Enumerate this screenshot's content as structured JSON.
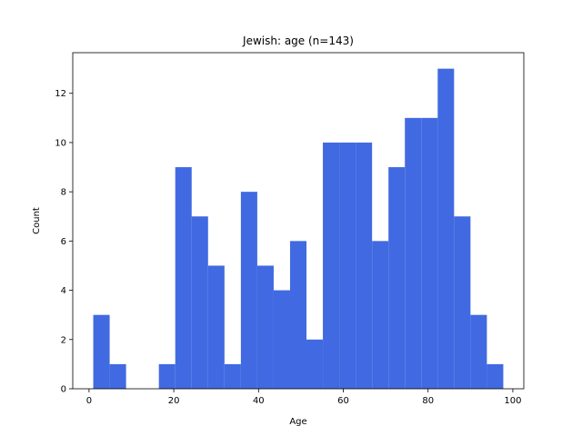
{
  "chart_data": {
    "type": "bar",
    "subtype": "histogram",
    "title": "Jewish: age (n=143)",
    "xlabel": "Age",
    "ylabel": "Count",
    "bar_color": "#4169e1",
    "bin_start": 1,
    "bin_width": 3.87,
    "bins": [
      {
        "x0": 1.0,
        "x1": 4.87,
        "count": 3
      },
      {
        "x0": 4.87,
        "x1": 8.74,
        "count": 1
      },
      {
        "x0": 8.74,
        "x1": 12.61,
        "count": 0
      },
      {
        "x0": 12.61,
        "x1": 16.48,
        "count": 0
      },
      {
        "x0": 16.48,
        "x1": 20.35,
        "count": 1
      },
      {
        "x0": 20.35,
        "x1": 24.22,
        "count": 9
      },
      {
        "x0": 24.22,
        "x1": 28.09,
        "count": 7
      },
      {
        "x0": 28.09,
        "x1": 31.96,
        "count": 5
      },
      {
        "x0": 31.96,
        "x1": 35.83,
        "count": 1
      },
      {
        "x0": 35.83,
        "x1": 39.7,
        "count": 8
      },
      {
        "x0": 39.7,
        "x1": 43.57,
        "count": 5
      },
      {
        "x0": 43.57,
        "x1": 47.44,
        "count": 4
      },
      {
        "x0": 47.44,
        "x1": 51.31,
        "count": 6
      },
      {
        "x0": 51.31,
        "x1": 55.18,
        "count": 2
      },
      {
        "x0": 55.18,
        "x1": 59.05,
        "count": 10
      },
      {
        "x0": 59.05,
        "x1": 62.92,
        "count": 10
      },
      {
        "x0": 62.92,
        "x1": 66.79,
        "count": 10
      },
      {
        "x0": 66.79,
        "x1": 70.66,
        "count": 6
      },
      {
        "x0": 70.66,
        "x1": 74.53,
        "count": 9
      },
      {
        "x0": 74.53,
        "x1": 78.4,
        "count": 11
      },
      {
        "x0": 78.4,
        "x1": 82.27,
        "count": 11
      },
      {
        "x0": 82.27,
        "x1": 86.14,
        "count": 13
      },
      {
        "x0": 86.14,
        "x1": 90.01,
        "count": 7
      },
      {
        "x0": 90.01,
        "x1": 93.88,
        "count": 3
      },
      {
        "x0": 93.88,
        "x1": 97.75,
        "count": 1
      }
    ],
    "xlim": [
      -3.84,
      102.59
    ],
    "ylim": [
      0,
      13.65
    ],
    "xticks": [
      0,
      20,
      40,
      60,
      80,
      100
    ],
    "xtick_labels": [
      "0",
      "20",
      "40",
      "60",
      "80",
      "100"
    ],
    "yticks": [
      0,
      2,
      4,
      6,
      8,
      10,
      12
    ],
    "ytick_labels": [
      "0",
      "2",
      "4",
      "6",
      "8",
      "10",
      "12"
    ],
    "grid": false,
    "legend": false
  }
}
